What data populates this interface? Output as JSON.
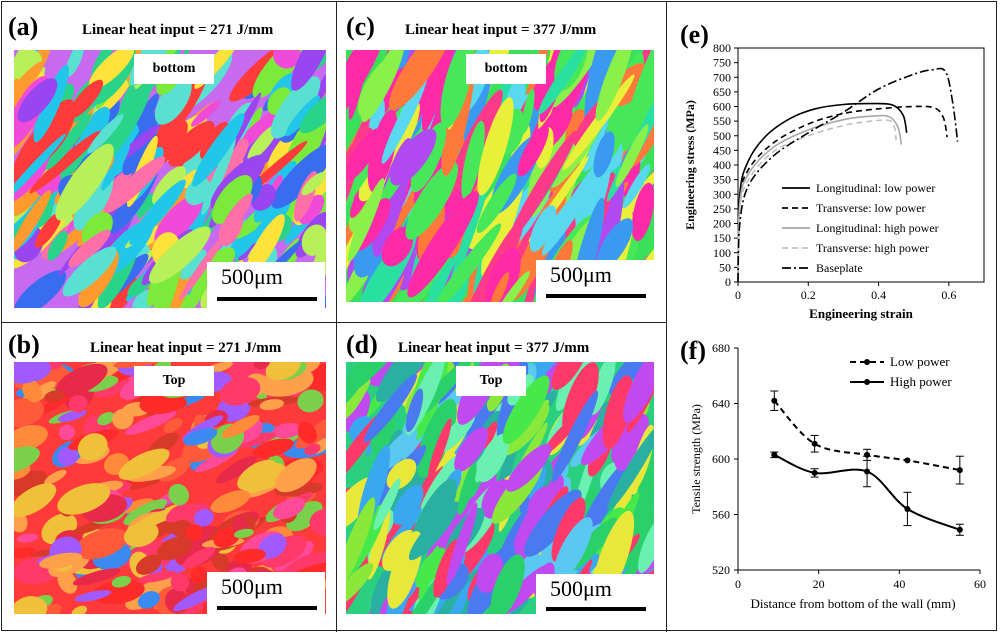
{
  "panels": {
    "a": {
      "letter": "(a)",
      "title": "Linear heat input = 271 J/mm",
      "location": "bottom",
      "scale": "500μm"
    },
    "b": {
      "letter": "(b)",
      "title": "Linear heat input = 271 J/mm",
      "location": "Top",
      "scale": "500μm"
    },
    "c": {
      "letter": "(c)",
      "title": "Linear heat input = 377 J/mm",
      "location": "bottom",
      "scale": "500μm"
    },
    "d": {
      "letter": "(d)",
      "title": "Linear heat input = 377 J/mm",
      "location": "Top",
      "scale": "500μm"
    },
    "e": {
      "letter": "(e)"
    },
    "f": {
      "letter": "(f)"
    }
  },
  "chart_data": [
    {
      "type": "line",
      "panel": "e",
      "xlabel": "Engineering strain",
      "ylabel": "Engineering stress (MPa)",
      "xlim": [
        0,
        0.7
      ],
      "ylim": [
        0,
        800
      ],
      "xticks": [
        0,
        0.2,
        0.4,
        0.6
      ],
      "yticks": [
        0,
        50,
        100,
        150,
        200,
        250,
        300,
        350,
        400,
        450,
        500,
        550,
        600,
        650,
        700,
        750,
        800
      ],
      "legend_position": "lower-right",
      "series": [
        {
          "name": "Longitudinal: low power",
          "style": "solid",
          "color": "#000000",
          "x": [
            0.0,
            0.005,
            0.03,
            0.08,
            0.15,
            0.22,
            0.3,
            0.38,
            0.44,
            0.47,
            0.48
          ],
          "y": [
            0,
            300,
            415,
            500,
            560,
            592,
            607,
            610,
            605,
            570,
            510
          ]
        },
        {
          "name": "Transverse: low power",
          "style": "dashed",
          "color": "#000000",
          "x": [
            0.0,
            0.005,
            0.03,
            0.1,
            0.2,
            0.3,
            0.4,
            0.5,
            0.56,
            0.585,
            0.595
          ],
          "y": [
            0,
            280,
            385,
            475,
            540,
            576,
            592,
            600,
            595,
            560,
            495
          ]
        },
        {
          "name": "Longitudinal: high power",
          "style": "solid",
          "color": "#a8a8a8",
          "x": [
            0.0,
            0.005,
            0.03,
            0.1,
            0.2,
            0.3,
            0.38,
            0.43,
            0.455,
            0.465
          ],
          "y": [
            0,
            270,
            370,
            460,
            520,
            555,
            567,
            565,
            530,
            470
          ]
        },
        {
          "name": "Transverse: high power",
          "style": "dashed",
          "color": "#c0c0c0",
          "x": [
            0.0,
            0.005,
            0.03,
            0.1,
            0.2,
            0.3,
            0.38,
            0.43,
            0.445,
            0.45
          ],
          "y": [
            0,
            250,
            350,
            445,
            500,
            535,
            550,
            552,
            530,
            485
          ]
        },
        {
          "name": "Baseplate",
          "style": "dashdot",
          "color": "#000000",
          "x": [
            0.0,
            0.005,
            0.03,
            0.1,
            0.2,
            0.3,
            0.4,
            0.5,
            0.55,
            0.59,
            0.61,
            0.625
          ],
          "y": [
            0,
            200,
            330,
            430,
            510,
            580,
            660,
            710,
            725,
            720,
            620,
            480
          ]
        }
      ]
    },
    {
      "type": "line",
      "panel": "f",
      "xlabel": "Distance from bottom of the wall (mm)",
      "ylabel": "Tensile strength (MPa)",
      "xlim": [
        0,
        60
      ],
      "ylim": [
        520,
        680
      ],
      "xticks": [
        0,
        20,
        40,
        60
      ],
      "yticks": [
        520,
        560,
        600,
        640,
        680
      ],
      "legend_position": "top-right",
      "series": [
        {
          "name": "Low power",
          "style": "dashed",
          "color": "#000000",
          "x": [
            9,
            19,
            32,
            42,
            55
          ],
          "y": [
            642,
            611,
            603,
            599,
            592
          ],
          "err": [
            7,
            6,
            4,
            0,
            10
          ]
        },
        {
          "name": "High power",
          "style": "solid",
          "color": "#000000",
          "x": [
            9,
            19,
            32,
            42,
            55
          ],
          "y": [
            603,
            590,
            591,
            564,
            549
          ],
          "err": [
            2,
            3,
            11,
            12,
            4
          ]
        }
      ]
    }
  ]
}
